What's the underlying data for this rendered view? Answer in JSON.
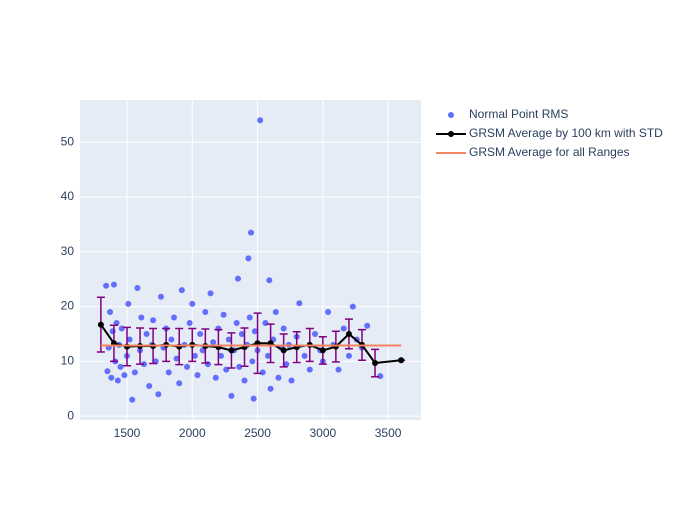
{
  "chart_data": {
    "type": "scatter",
    "xlim": [
      1140,
      3752
    ],
    "ylim": [
      -0.7,
      57.7
    ],
    "xticks": [
      1500,
      2000,
      2500,
      3000,
      3500
    ],
    "yticks": [
      0,
      10,
      20,
      30,
      40,
      50
    ],
    "grid": true,
    "legend": "right",
    "series": [
      {
        "name": "Normal Point RMS",
        "mode": "markers",
        "color": "#636efa",
        "x": [
          1340,
          1350,
          1360,
          1370,
          1380,
          1390,
          1400,
          1410,
          1420,
          1430,
          1440,
          1450,
          1460,
          1480,
          1500,
          1510,
          1520,
          1540,
          1560,
          1580,
          1600,
          1610,
          1630,
          1650,
          1670,
          1690,
          1700,
          1720,
          1740,
          1760,
          1780,
          1800,
          1820,
          1840,
          1860,
          1880,
          1900,
          1920,
          1940,
          1960,
          1980,
          2000,
          2020,
          2040,
          2060,
          2080,
          2100,
          2120,
          2140,
          2160,
          2180,
          2200,
          2220,
          2240,
          2260,
          2280,
          2300,
          2320,
          2340,
          2350,
          2360,
          2380,
          2400,
          2420,
          2430,
          2440,
          2450,
          2460,
          2470,
          2480,
          2500,
          2520,
          2540,
          2560,
          2580,
          2590,
          2600,
          2620,
          2640,
          2660,
          2680,
          2700,
          2720,
          2740,
          2760,
          2800,
          2820,
          2860,
          2900,
          2940,
          2980,
          3000,
          3040,
          3080,
          3120,
          3160,
          3200,
          3230,
          3260,
          3300,
          3340,
          3440,
          3600
        ],
        "values": [
          23.8,
          8.2,
          12.5,
          19,
          7,
          15.5,
          24,
          10,
          17,
          6.5,
          13,
          9,
          16,
          7.5,
          11,
          20.5,
          14,
          3,
          8,
          23.4,
          12,
          18,
          9.5,
          15,
          5.5,
          13,
          17.5,
          10,
          4,
          21.8,
          12.5,
          16,
          8,
          14,
          18,
          10.5,
          6,
          23,
          13,
          9,
          17,
          20.5,
          11,
          7.5,
          15,
          12,
          19,
          9.5,
          22.4,
          13.5,
          7,
          16,
          11,
          18.5,
          8.5,
          14,
          3.7,
          12,
          17,
          25.1,
          9,
          15,
          6.5,
          13,
          28.8,
          18,
          33.5,
          10,
          3.2,
          15.5,
          12,
          54,
          8,
          17,
          11,
          24.8,
          5,
          14,
          19,
          7,
          12.5,
          16,
          9.5,
          13,
          6.5,
          14.5,
          20.6,
          11,
          8.5,
          15,
          12,
          10,
          19,
          13,
          8.5,
          16,
          11,
          20,
          14,
          12.5,
          16.5,
          7.3,
          10.2
        ]
      },
      {
        "name": "GRSM Average by 100 km with STD",
        "mode": "lines+markers",
        "color": "#000000",
        "error_color": "#800080",
        "x": [
          1300,
          1400,
          1500,
          1600,
          1700,
          1800,
          1900,
          2000,
          2100,
          2200,
          2300,
          2400,
          2500,
          2600,
          2700,
          2800,
          2900,
          3000,
          3100,
          3200,
          3300,
          3400,
          3600
        ],
        "values": [
          16.7,
          13.3,
          12.7,
          12.8,
          12.8,
          13.0,
          12.7,
          13.0,
          12.8,
          12.6,
          12.0,
          12.6,
          13.3,
          13.3,
          12.0,
          12.6,
          13.0,
          12.0,
          12.7,
          15.0,
          13.0,
          9.7,
          10.2
        ],
        "error": [
          5.0,
          3.3,
          3.5,
          3.3,
          3.2,
          3.0,
          3.3,
          3.0,
          3.1,
          3.2,
          3.2,
          3.5,
          5.5,
          3.5,
          3.0,
          2.8,
          3.0,
          2.5,
          2.8,
          2.7,
          2.8,
          2.5,
          0
        ]
      },
      {
        "name": "GRSM Average for all Ranges",
        "mode": "lines",
        "color": "#f4845f",
        "x": [
          1300,
          3600
        ],
        "values": [
          12.9,
          12.9
        ]
      }
    ]
  }
}
